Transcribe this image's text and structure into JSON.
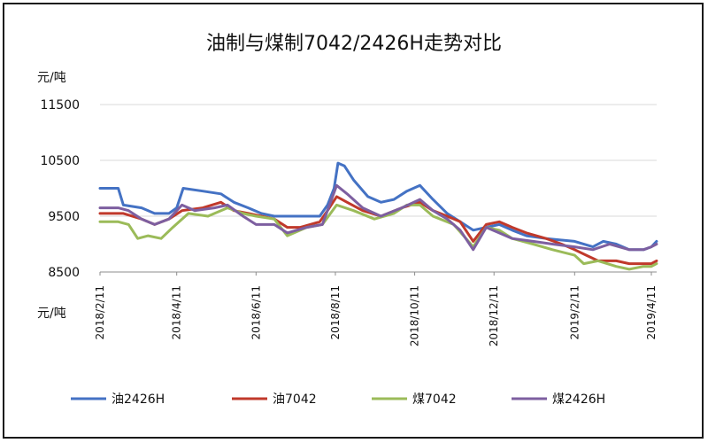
{
  "chart_data": {
    "type": "line",
    "title": "油制与煤制7042/2426H走势对比",
    "y_unit_top": "元/吨",
    "x_unit_bottom": "元/吨",
    "ylim": [
      8500,
      11500
    ],
    "yticks": [
      8500,
      9500,
      10500,
      11500
    ],
    "xlim": [
      "2018/2/11",
      "2019/4/18"
    ],
    "xticks": [
      "2018/2/11",
      "2018/4/11",
      "2018/6/11",
      "2018/8/11",
      "2018/10/11",
      "2018/12/11",
      "2019/2/11",
      "2019/4/11"
    ],
    "grid": "horizontal",
    "legend_position": "bottom",
    "series": [
      {
        "name": "油2426H",
        "color": "#4472c4",
        "points": [
          [
            "2018/2/11",
            10000
          ],
          [
            "2018/2/25",
            10000
          ],
          [
            "2018/3/1",
            9700
          ],
          [
            "2018/3/15",
            9650
          ],
          [
            "2018/3/25",
            9550
          ],
          [
            "2018/4/5",
            9550
          ],
          [
            "2018/4/11",
            9650
          ],
          [
            "2018/4/16",
            10000
          ],
          [
            "2018/5/1",
            9950
          ],
          [
            "2018/5/15",
            9900
          ],
          [
            "2018/5/25",
            9750
          ],
          [
            "2018/6/5",
            9650
          ],
          [
            "2018/6/15",
            9550
          ],
          [
            "2018/6/25",
            9500
          ],
          [
            "2018/7/15",
            9500
          ],
          [
            "2018/7/30",
            9500
          ],
          [
            "2018/8/5",
            9700
          ],
          [
            "2018/8/10",
            10000
          ],
          [
            "2018/8/13",
            10450
          ],
          [
            "2018/8/18",
            10400
          ],
          [
            "2018/8/25",
            10150
          ],
          [
            "2018/9/5",
            9850
          ],
          [
            "2018/9/15",
            9750
          ],
          [
            "2018/9/25",
            9800
          ],
          [
            "2018/10/5",
            9950
          ],
          [
            "2018/10/15",
            10050
          ],
          [
            "2018/10/25",
            9800
          ],
          [
            "2018/11/5",
            9550
          ],
          [
            "2018/11/15",
            9400
          ],
          [
            "2018/11/25",
            9250
          ],
          [
            "2018/12/5",
            9300
          ],
          [
            "2018/12/15",
            9350
          ],
          [
            "2018/12/25",
            9250
          ],
          [
            "2019/1/5",
            9150
          ],
          [
            "2019/1/20",
            9100
          ],
          [
            "2019/2/11",
            9050
          ],
          [
            "2019/2/25",
            8950
          ],
          [
            "2019/3/5",
            9050
          ],
          [
            "2019/3/15",
            9000
          ],
          [
            "2019/3/25",
            8900
          ],
          [
            "2019/4/5",
            8900
          ],
          [
            "2019/4/11",
            8950
          ],
          [
            "2019/4/15",
            9050
          ]
        ]
      },
      {
        "name": "油7042",
        "color": "#c0392b",
        "points": [
          [
            "2018/2/11",
            9550
          ],
          [
            "2018/3/1",
            9550
          ],
          [
            "2018/3/15",
            9450
          ],
          [
            "2018/3/25",
            9350
          ],
          [
            "2018/4/5",
            9450
          ],
          [
            "2018/4/15",
            9600
          ],
          [
            "2018/5/1",
            9650
          ],
          [
            "2018/5/15",
            9750
          ],
          [
            "2018/5/25",
            9600
          ],
          [
            "2018/6/5",
            9550
          ],
          [
            "2018/6/15",
            9500
          ],
          [
            "2018/6/25",
            9450
          ],
          [
            "2018/7/5",
            9300
          ],
          [
            "2018/7/15",
            9300
          ],
          [
            "2018/7/30",
            9400
          ],
          [
            "2018/8/5",
            9600
          ],
          [
            "2018/8/12",
            9850
          ],
          [
            "2018/8/20",
            9750
          ],
          [
            "2018/9/1",
            9600
          ],
          [
            "2018/9/15",
            9500
          ],
          [
            "2018/10/1",
            9650
          ],
          [
            "2018/10/15",
            9750
          ],
          [
            "2018/10/25",
            9600
          ],
          [
            "2018/11/5",
            9500
          ],
          [
            "2018/11/15",
            9400
          ],
          [
            "2018/11/25",
            9050
          ],
          [
            "2018/12/5",
            9350
          ],
          [
            "2018/12/15",
            9400
          ],
          [
            "2018/12/25",
            9300
          ],
          [
            "2019/1/5",
            9200
          ],
          [
            "2019/1/20",
            9100
          ],
          [
            "2019/2/1",
            9000
          ],
          [
            "2019/2/11",
            8900
          ],
          [
            "2019/2/20",
            8800
          ],
          [
            "2019/3/1",
            8700
          ],
          [
            "2019/3/15",
            8700
          ],
          [
            "2019/3/25",
            8650
          ],
          [
            "2019/4/5",
            8650
          ],
          [
            "2019/4/11",
            8650
          ],
          [
            "2019/4/15",
            8700
          ]
        ]
      },
      {
        "name": "煤7042",
        "color": "#9bbb59",
        "points": [
          [
            "2018/2/11",
            9400
          ],
          [
            "2018/2/25",
            9400
          ],
          [
            "2018/3/5",
            9350
          ],
          [
            "2018/3/12",
            9100
          ],
          [
            "2018/3/20",
            9150
          ],
          [
            "2018/3/30",
            9100
          ],
          [
            "2018/4/8",
            9300
          ],
          [
            "2018/4/20",
            9550
          ],
          [
            "2018/5/5",
            9500
          ],
          [
            "2018/5/20",
            9650
          ],
          [
            "2018/6/1",
            9550
          ],
          [
            "2018/6/11",
            9500
          ],
          [
            "2018/6/25",
            9450
          ],
          [
            "2018/7/5",
            9150
          ],
          [
            "2018/7/20",
            9300
          ],
          [
            "2018/8/1",
            9350
          ],
          [
            "2018/8/12",
            9700
          ],
          [
            "2018/8/25",
            9600
          ],
          [
            "2018/9/10",
            9450
          ],
          [
            "2018/9/25",
            9550
          ],
          [
            "2018/10/5",
            9700
          ],
          [
            "2018/10/15",
            9700
          ],
          [
            "2018/10/25",
            9500
          ],
          [
            "2018/11/10",
            9350
          ],
          [
            "2018/11/25",
            8950
          ],
          [
            "2018/12/5",
            9300
          ],
          [
            "2018/12/15",
            9250
          ],
          [
            "2018/12/25",
            9100
          ],
          [
            "2019/1/10",
            9000
          ],
          [
            "2019/1/25",
            8900
          ],
          [
            "2019/2/11",
            8800
          ],
          [
            "2019/2/18",
            8650
          ],
          [
            "2019/3/1",
            8700
          ],
          [
            "2019/3/15",
            8600
          ],
          [
            "2019/3/25",
            8550
          ],
          [
            "2019/4/5",
            8600
          ],
          [
            "2019/4/11",
            8600
          ],
          [
            "2019/4/15",
            8650
          ]
        ]
      },
      {
        "name": "煤2426H",
        "color": "#7d5fa0",
        "points": [
          [
            "2018/2/11",
            9650
          ],
          [
            "2018/2/25",
            9650
          ],
          [
            "2018/3/5",
            9600
          ],
          [
            "2018/3/15",
            9450
          ],
          [
            "2018/3/25",
            9350
          ],
          [
            "2018/4/5",
            9450
          ],
          [
            "2018/4/15",
            9700
          ],
          [
            "2018/4/25",
            9600
          ],
          [
            "2018/5/10",
            9650
          ],
          [
            "2018/5/20",
            9700
          ],
          [
            "2018/6/1",
            9500
          ],
          [
            "2018/6/11",
            9350
          ],
          [
            "2018/6/25",
            9350
          ],
          [
            "2018/7/5",
            9200
          ],
          [
            "2018/7/20",
            9300
          ],
          [
            "2018/8/1",
            9350
          ],
          [
            "2018/8/12",
            10050
          ],
          [
            "2018/8/20",
            9900
          ],
          [
            "2018/9/1",
            9650
          ],
          [
            "2018/9/15",
            9500
          ],
          [
            "2018/10/1",
            9650
          ],
          [
            "2018/10/15",
            9800
          ],
          [
            "2018/10/25",
            9600
          ],
          [
            "2018/11/5",
            9450
          ],
          [
            "2018/11/15",
            9250
          ],
          [
            "2018/11/25",
            8900
          ],
          [
            "2018/12/5",
            9300
          ],
          [
            "2018/12/15",
            9200
          ],
          [
            "2018/12/25",
            9100
          ],
          [
            "2019/1/10",
            9050
          ],
          [
            "2019/1/25",
            9000
          ],
          [
            "2019/2/11",
            8950
          ],
          [
            "2019/2/25",
            8900
          ],
          [
            "2019/3/10",
            9000
          ],
          [
            "2019/3/25",
            8900
          ],
          [
            "2019/4/5",
            8900
          ],
          [
            "2019/4/11",
            8950
          ],
          [
            "2019/4/15",
            9000
          ]
        ]
      }
    ]
  }
}
